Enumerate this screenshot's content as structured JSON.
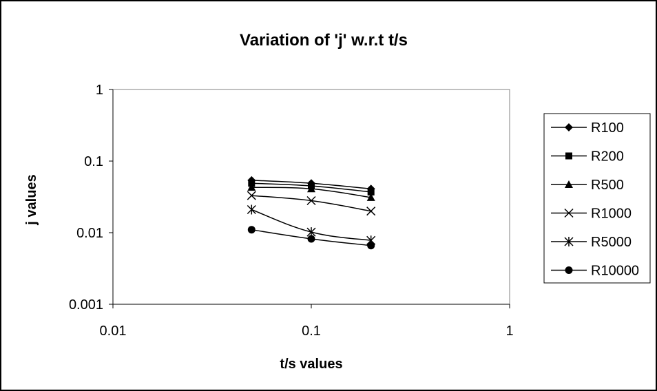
{
  "chart_data": {
    "type": "line",
    "title": "Variation of 'j' w.r.t t/s",
    "xlabel": "t/s values",
    "ylabel": "j values",
    "xscale": "log",
    "yscale": "log",
    "xlim": [
      0.01,
      1
    ],
    "ylim": [
      0.001,
      1
    ],
    "xticks": [
      "0.01",
      "0.1",
      "1"
    ],
    "yticks": [
      "0.001",
      "0.01",
      "0.1",
      "1"
    ],
    "grid": false,
    "legend_position": "right",
    "x": [
      0.05,
      0.1,
      0.2
    ],
    "series": [
      {
        "name": "R100",
        "marker": "diamond",
        "values": [
          0.054,
          0.049,
          0.041
        ]
      },
      {
        "name": "R200",
        "marker": "square",
        "values": [
          0.049,
          0.045,
          0.037
        ]
      },
      {
        "name": "R500",
        "marker": "triangle",
        "values": [
          0.043,
          0.041,
          0.031
        ]
      },
      {
        "name": "R1000",
        "marker": "x",
        "values": [
          0.033,
          0.028,
          0.02
        ]
      },
      {
        "name": "R5000",
        "marker": "star",
        "values": [
          0.021,
          0.0102,
          0.0078
        ]
      },
      {
        "name": "R10000",
        "marker": "circle",
        "values": [
          0.011,
          0.0082,
          0.0066
        ]
      }
    ]
  }
}
